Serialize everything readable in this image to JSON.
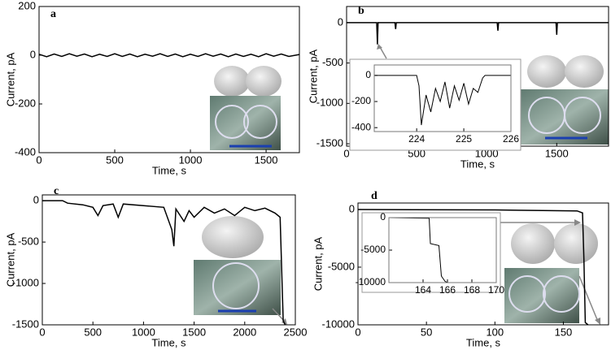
{
  "chart_data": [
    {
      "type": "line",
      "title": "a",
      "x_label": "Time, s",
      "y_label": "Current, pA",
      "xlim": [
        0,
        1720
      ],
      "ylim": [
        -400,
        200
      ],
      "xticks": [
        0,
        500,
        1000,
        1500
      ],
      "yticks": [
        -400,
        -200,
        0,
        200
      ],
      "series": [
        {
          "color": "#000000",
          "x": [
            0,
            50,
            100,
            150,
            200,
            250,
            300,
            350,
            400,
            450,
            500,
            550,
            600,
            650,
            700,
            750,
            800,
            850,
            900,
            950,
            1000,
            1050,
            1100,
            1150,
            1200,
            1250,
            1300,
            1350,
            1400,
            1450,
            1500,
            1550,
            1600,
            1650,
            1720
          ],
          "values": [
            4,
            -6,
            5,
            -5,
            6,
            -4,
            5,
            -6,
            4,
            -5,
            6,
            -5,
            5,
            -6,
            4,
            -4,
            6,
            -5,
            5,
            -6,
            4,
            -5,
            6,
            -4,
            5,
            -6,
            5,
            -5,
            4,
            -6,
            6,
            -4,
            5,
            -5,
            3
          ]
        }
      ]
    },
    {
      "type": "line",
      "title": "b",
      "x_label": "Time, s",
      "y_label": "Current, pA",
      "xlim": [
        0,
        1870
      ],
      "ylim": [
        -1530,
        200
      ],
      "xticks": [
        0,
        500,
        1000,
        1500
      ],
      "yticks": [
        -1500,
        -1000,
        -500,
        0
      ],
      "series": [
        {
          "color": "#000000",
          "x": [
            0,
            215,
            220,
            225,
            345,
            350,
            355,
            1075,
            1080,
            1085,
            1495,
            1500,
            1505,
            1870
          ],
          "values": [
            0,
            0,
            -270,
            0,
            0,
            -80,
            0,
            0,
            -100,
            0,
            0,
            -150,
            0,
            0
          ]
        }
      ],
      "inset": {
        "xlim": [
          223.1,
          226
        ],
        "ylim": [
          -430,
          80
        ],
        "xticks": [
          224,
          225,
          226
        ],
        "yticks": [
          -400,
          -200,
          0
        ],
        "series": [
          {
            "color": "#000000",
            "x": [
              223.1,
              224.0,
              224.05,
              224.1,
              224.2,
              224.3,
              224.4,
              224.5,
              224.6,
              224.7,
              224.8,
              224.9,
              225.0,
              225.1,
              225.2,
              225.3,
              225.4,
              225.45,
              226.0
            ],
            "values": [
              0,
              0,
              -80,
              -380,
              -150,
              -280,
              -100,
              -200,
              -50,
              -250,
              -80,
              -190,
              -60,
              -220,
              -100,
              -130,
              -20,
              0,
              0
            ]
          }
        ]
      }
    },
    {
      "type": "line",
      "title": "c",
      "x_label": "Time, s",
      "y_label": "Current, pA",
      "xlim": [
        0,
        2500
      ],
      "ylim": [
        -1500,
        70
      ],
      "xticks": [
        0,
        500,
        1000,
        1500,
        2000,
        2500
      ],
      "yticks": [
        -1500,
        -1000,
        -500,
        0
      ],
      "series": [
        {
          "color": "#000000",
          "x": [
            0,
            200,
            250,
            400,
            500,
            550,
            600,
            700,
            750,
            800,
            1000,
            1200,
            1280,
            1300,
            1320,
            1400,
            1450,
            1500,
            1600,
            1700,
            1800,
            1900,
            2000,
            2100,
            2200,
            2300,
            2350,
            2380,
            2400
          ],
          "values": [
            0,
            0,
            -30,
            -50,
            -80,
            -180,
            -60,
            -40,
            -200,
            -40,
            -60,
            -80,
            -350,
            -550,
            -100,
            -250,
            -120,
            -200,
            -80,
            -150,
            -100,
            -180,
            -80,
            -120,
            -90,
            -150,
            -200,
            -1450,
            -1500
          ]
        }
      ]
    },
    {
      "type": "line",
      "title": "d",
      "x_label": "Time, s",
      "y_label": "Current, pA",
      "xlim": [
        0,
        183
      ],
      "ylim": [
        -10000,
        560
      ],
      "xticks": [
        0,
        50,
        100,
        150
      ],
      "yticks": [
        -10000,
        -5000,
        0
      ],
      "series": [
        {
          "color": "#000000",
          "x": [
            0,
            100,
            160,
            164,
            165,
            166,
            168
          ],
          "values": [
            0,
            -40,
            -120,
            -300,
            -4300,
            -9800,
            -10000
          ]
        }
      ],
      "inset": {
        "xlim": [
          161.2,
          170
        ],
        "ylim": [
          -10000,
          0
        ],
        "xticks": [
          164,
          166,
          168,
          170
        ],
        "yticks": [
          -10000,
          -5000,
          0
        ],
        "series": [
          {
            "color": "#000000",
            "x": [
              161.2,
              164.5,
              164.6,
              165.3,
              165.5,
              165.8,
              166
            ],
            "values": [
              0,
              -100,
              -4000,
              -4300,
              -9000,
              -9800,
              -10000
            ]
          }
        ]
      }
    }
  ]
}
